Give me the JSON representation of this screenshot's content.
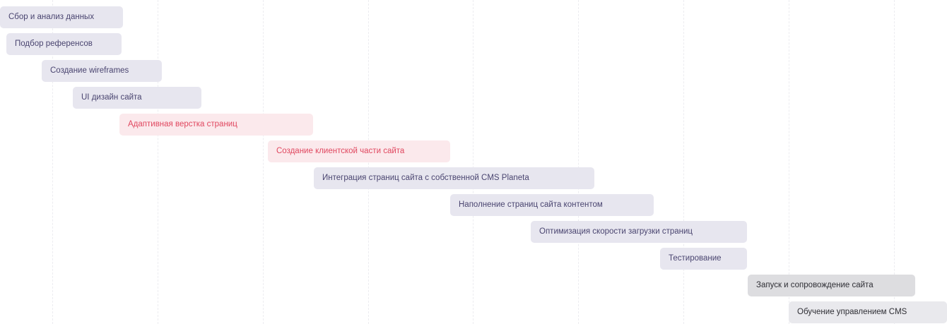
{
  "tasks": [
    {
      "label": "Сбор и анализ данных"
    },
    {
      "label": "Подбор референсов"
    },
    {
      "label": "Создание  wireframes"
    },
    {
      "label": "UI дизайн сайта"
    },
    {
      "label": "Адаптивная верстка страниц"
    },
    {
      "label": "Создание клиентской части сайта"
    },
    {
      "label": "Интеграция страниц сайта с собственной CMS Planeta"
    },
    {
      "label": "Наполнение страниц сайта контентом"
    },
    {
      "label": "Оптимизация скорости загрузки страниц"
    },
    {
      "label": "Тестирование"
    },
    {
      "label": "Запуск и сопровождение сайта"
    },
    {
      "label": "Обучение управлением  CMS"
    }
  ]
}
